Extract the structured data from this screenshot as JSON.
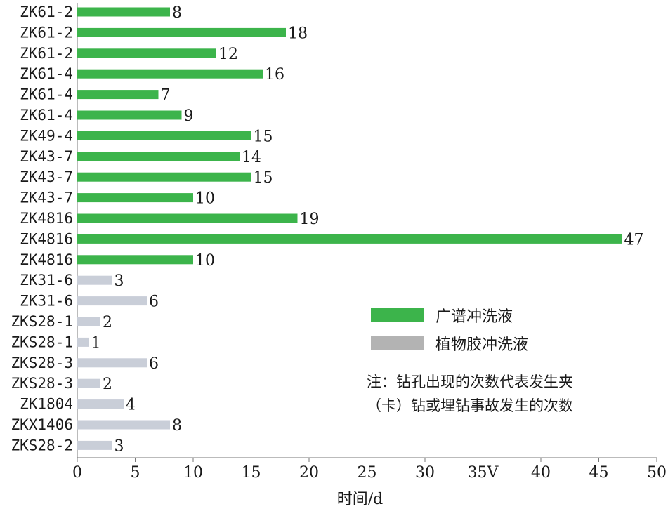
{
  "chart_data": {
    "type": "bar",
    "orientation": "horizontal",
    "categories": [
      "ZK61-2",
      "ZK61-2",
      "ZK61-2",
      "ZK61-4",
      "ZK61-4",
      "ZK61-4",
      "ZK49-4",
      "ZK43-7",
      "ZK43-7",
      "ZK43-7",
      "ZK4816",
      "ZK4816",
      "ZK4816",
      "ZK31-6",
      "ZK31-6",
      "ZKS28-1",
      "ZKS28-1",
      "ZKS28-3",
      "ZKS28-3",
      "ZK1804",
      "ZKX1406",
      "ZKS28-2"
    ],
    "values": [
      8,
      18,
      12,
      16,
      7,
      9,
      15,
      14,
      15,
      10,
      19,
      47,
      10,
      3,
      6,
      2,
      1,
      6,
      2,
      4,
      8,
      3
    ],
    "series_index": [
      0,
      0,
      0,
      0,
      0,
      0,
      0,
      0,
      0,
      0,
      0,
      0,
      0,
      1,
      1,
      1,
      1,
      1,
      1,
      1,
      1,
      1
    ],
    "series": [
      {
        "name": "广谱冲洗液",
        "color": "#3cb44b"
      },
      {
        "name": "植物胶冲洗液",
        "color": "#c9ced8"
      }
    ],
    "legend_swatch_colors": [
      "#3cb44b",
      "#b3b3b3"
    ],
    "xlabel": "时间/d",
    "ylabel": "",
    "xlim": [
      0,
      50
    ],
    "xticks": [
      "0",
      "5",
      "10",
      "15",
      "20",
      "25",
      "30",
      "35V",
      "40",
      "45",
      "50"
    ],
    "grid": false,
    "legend_position": "right-lower"
  },
  "note": {
    "line1": "注：钻孔出现的次数代表发生夹",
    "line2": "（卡）钻或埋钻事故发生的次数"
  }
}
